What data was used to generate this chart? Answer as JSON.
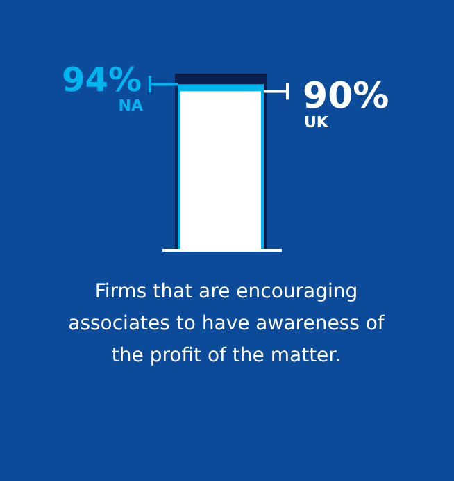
{
  "chart_data": {
    "type": "bar",
    "categories": [
      null
    ],
    "ylim": [
      0,
      100
    ],
    "series": [
      {
        "color": "#0b1f4f",
        "values": [
          100
        ]
      },
      {
        "name": "NA",
        "color": "#00b4f0",
        "values": [
          94
        ],
        "value_labels": [
          "94%"
        ]
      },
      {
        "name": "UK",
        "color": "#ffffff",
        "values": [
          90
        ],
        "value_labels": [
          "90%"
        ]
      }
    ],
    "annotations": [
      "Firms that are encouraging associates to have awareness of the profit of the matter."
    ]
  }
}
